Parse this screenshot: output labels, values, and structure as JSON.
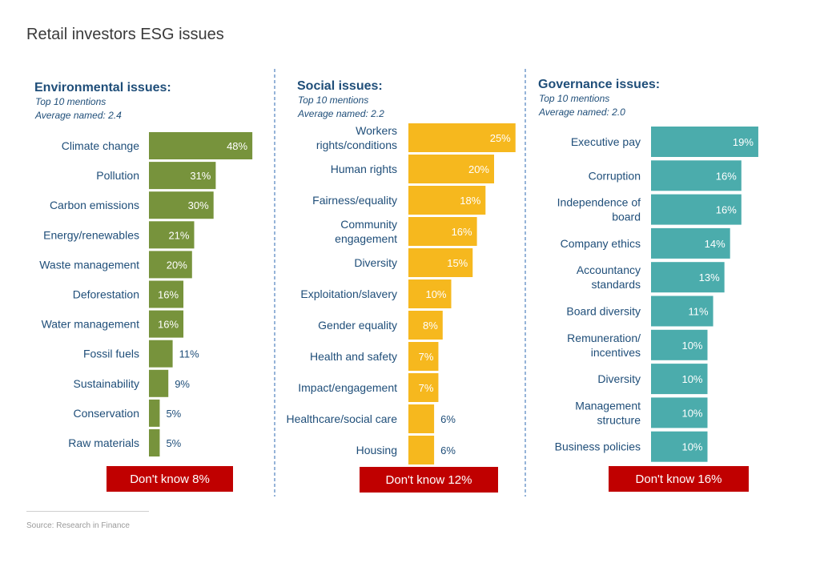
{
  "title": "Retail investors ESG issues",
  "source": "Source: Research in Finance",
  "colors": {
    "environmental": "#77933c",
    "social": "#f6b81e",
    "governance": "#4bacac",
    "dont_know": "#c00000",
    "heading": "#1f4e79",
    "label": "#1f4e79",
    "divider": "#4f81bd"
  },
  "chart_data": [
    {
      "type": "bar",
      "orientation": "horizontal",
      "title": "Environmental issues:",
      "subtitle_lines": [
        "Top 10 mentions",
        "Average named: 2.4"
      ],
      "categories": [
        "Climate change",
        "Pollution",
        "Carbon emissions",
        "Energy/renewables",
        "Waste management",
        "Deforestation",
        "Water management",
        "Fossil fuels",
        "Sustainability",
        "Conservation",
        "Raw materials"
      ],
      "values": [
        48,
        31,
        30,
        21,
        20,
        16,
        16,
        11,
        9,
        5,
        5
      ],
      "value_labels": [
        "48%",
        "31%",
        "30%",
        "21%",
        "20%",
        "16%",
        "16%",
        "11%",
        "9%",
        "5%",
        "5%"
      ],
      "dont_know_label": "Don't know 8%",
      "dont_know_value": 8
    },
    {
      "type": "bar",
      "orientation": "horizontal",
      "title": "Social issues:",
      "subtitle_lines": [
        "Top 10 mentions",
        "Average named: 2.2"
      ],
      "categories": [
        [
          "Workers",
          "rights/conditions"
        ],
        "Human rights",
        "Fairness/equality",
        [
          "Community",
          "engagement"
        ],
        "Diversity",
        "Exploitation/slavery",
        "Gender equality",
        "Health and safety",
        "Impact/engagement",
        "Healthcare/social care",
        "Housing"
      ],
      "values": [
        25,
        20,
        18,
        16,
        15,
        10,
        8,
        7,
        7,
        6,
        6
      ],
      "value_labels": [
        "25%",
        "20%",
        "18%",
        "16%",
        "15%",
        "10%",
        "8%",
        "7%",
        "7%",
        "6%",
        "6%"
      ],
      "dont_know_label": "Don't know 12%",
      "dont_know_value": 12
    },
    {
      "type": "bar",
      "orientation": "horizontal",
      "title": "Governance issues:",
      "subtitle_lines": [
        "Top 10 mentions",
        "Average named: 2.0"
      ],
      "categories": [
        "Executive pay",
        "Corruption",
        [
          "Independence of",
          "board"
        ],
        "Company ethics",
        [
          "Accountancy",
          "standards"
        ],
        "Board diversity",
        [
          "Remuneration/",
          "incentives"
        ],
        "Diversity",
        [
          "Management",
          "structure"
        ],
        "Business policies"
      ],
      "values": [
        19,
        16,
        16,
        14,
        13,
        11,
        10,
        10,
        10,
        10
      ],
      "value_labels": [
        "19%",
        "16%",
        "16%",
        "14%",
        "13%",
        "11%",
        "10%",
        "10%",
        "10%",
        "10%"
      ],
      "dont_know_label": "Don't know 16%",
      "dont_know_value": 16
    }
  ]
}
